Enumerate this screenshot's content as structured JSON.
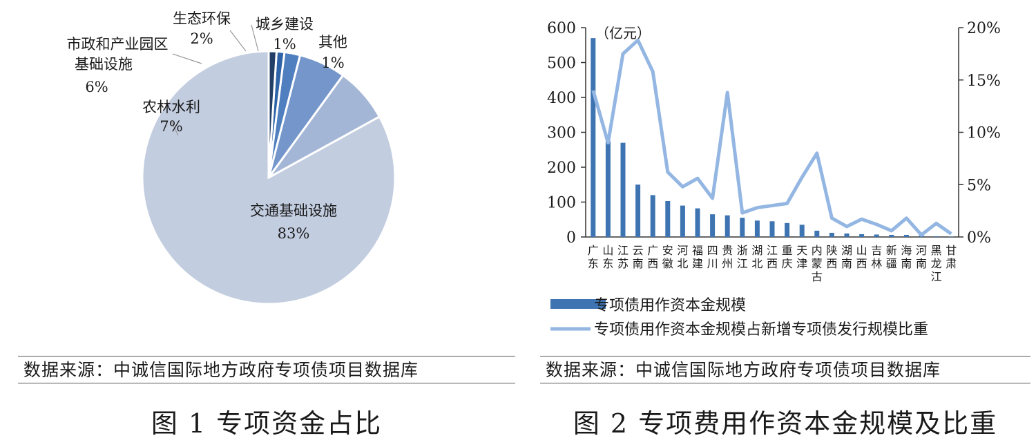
{
  "figure1": {
    "caption": "图 1  专项资金占比",
    "source": "数据来源：中诚信国际地方政府专项债项目数据库",
    "chart_data": {
      "type": "pie",
      "slices": [
        {
          "label_lines": [
            "交通基础设施"
          ],
          "pct_label": "83%",
          "value": 83,
          "color": "#c3cde0"
        },
        {
          "label_lines": [
            "农林水利"
          ],
          "pct_label": "7%",
          "value": 7,
          "color": "#a4b6d6"
        },
        {
          "label_lines": [
            "市政和产业园区",
            "基础设施"
          ],
          "pct_label": "6%",
          "value": 6,
          "color": "#7496cb"
        },
        {
          "label_lines": [
            "生态环保"
          ],
          "pct_label": "2%",
          "value": 2,
          "color": "#4f7fbe"
        },
        {
          "label_lines": [
            "城乡建设"
          ],
          "pct_label": "1%",
          "value": 1,
          "color": "#2f63a8"
        },
        {
          "label_lines": [
            "其他"
          ],
          "pct_label": "1%",
          "value": 1,
          "color": "#243f66"
        }
      ]
    }
  },
  "figure2": {
    "caption": "图 2  专项费用作资本金规模及比重",
    "source": "数据来源：中诚信国际地方政府专项债项目数据库",
    "chart_data": {
      "type": "bar+line",
      "unit_label": "（亿元）",
      "categories": [
        "广东",
        "山东",
        "江苏",
        "云南",
        "广西",
        "安徽",
        "河北",
        "福建",
        "四川",
        "贵州",
        "浙江",
        "湖北",
        "江西",
        "重庆",
        "天津",
        "内蒙古",
        "陕西",
        "湖南",
        "山西",
        "吉林",
        "新疆",
        "海南",
        "河南",
        "黑龙江",
        "甘肃"
      ],
      "category_lines": [
        [
          "广",
          "东"
        ],
        [
          "山",
          "东"
        ],
        [
          "江",
          "苏"
        ],
        [
          "云",
          "南"
        ],
        [
          "广",
          "西"
        ],
        [
          "安",
          "徽"
        ],
        [
          "河",
          "北"
        ],
        [
          "福",
          "建"
        ],
        [
          "四",
          "川"
        ],
        [
          "贵",
          "州"
        ],
        [
          "浙",
          "江"
        ],
        [
          "湖",
          "北"
        ],
        [
          "江",
          "西"
        ],
        [
          "重",
          "庆"
        ],
        [
          "天",
          "津"
        ],
        [
          "内",
          "蒙",
          "古"
        ],
        [
          "陕",
          "西"
        ],
        [
          "湖",
          "南"
        ],
        [
          "山",
          "西"
        ],
        [
          "吉",
          "林"
        ],
        [
          "新",
          "疆"
        ],
        [
          "海",
          "南"
        ],
        [
          "河",
          "南"
        ],
        [
          "黑",
          "龙",
          "江"
        ],
        [
          "甘",
          "肃"
        ]
      ],
      "y_left": {
        "min": 0,
        "max": 600,
        "ticks": [
          0,
          100,
          200,
          300,
          400,
          500,
          600
        ],
        "tick_labels": [
          "0",
          "100",
          "200",
          "300",
          "400",
          "500",
          "600"
        ]
      },
      "y_right": {
        "min": 0,
        "max": 20,
        "ticks": [
          0,
          5,
          10,
          15,
          20
        ],
        "tick_labels": [
          "0%",
          "5%",
          "10%",
          "15%",
          "20%"
        ]
      },
      "series": [
        {
          "name": "专项债用作资本金规模",
          "type": "bar",
          "axis": "left",
          "color": "#3d74b1",
          "values": [
            570,
            275,
            270,
            150,
            120,
            103,
            90,
            82,
            65,
            62,
            55,
            47,
            45,
            40,
            35,
            18,
            12,
            10,
            8,
            7,
            6,
            6,
            4,
            2,
            1
          ]
        },
        {
          "name": "专项债用作资本金规模占新增专项债发行规模比重",
          "type": "line",
          "axis": "right",
          "color": "#94b6e2",
          "values": [
            14.0,
            9.0,
            17.5,
            18.8,
            15.8,
            6.2,
            4.8,
            5.6,
            3.7,
            13.8,
            2.3,
            2.8,
            3.0,
            3.2,
            5.7,
            8.0,
            1.8,
            1.0,
            1.7,
            1.2,
            0.6,
            1.8,
            0.2,
            1.3,
            0.3
          ]
        }
      ]
    }
  }
}
